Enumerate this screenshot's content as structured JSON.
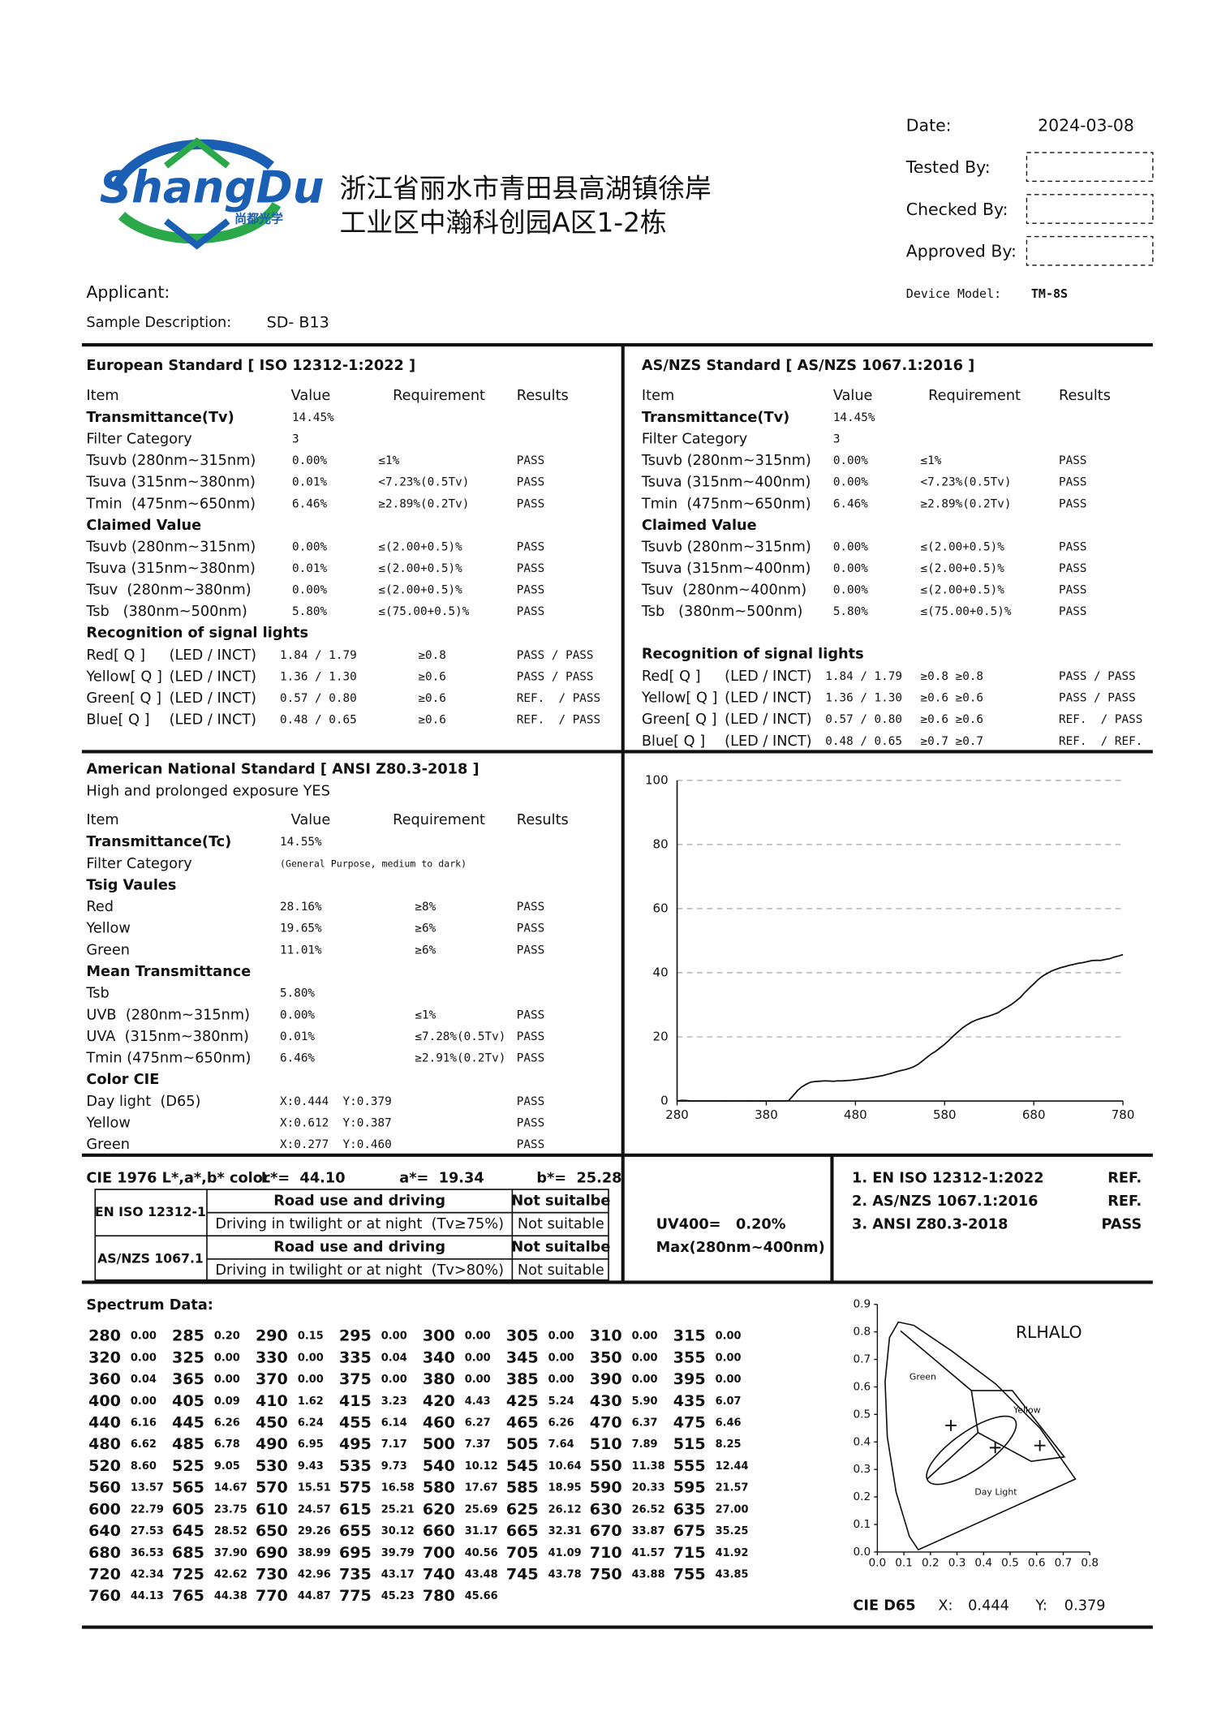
{
  "header": {
    "logo": "ShangDu",
    "logo_sub": "尚都光学",
    "address": [
      "浙江省丽水市青田县高湖镇徐岸",
      "工业区中瀚科创园A区1-2栋"
    ],
    "date_label": "Date:",
    "date": "2024-03-08",
    "tested_by": "Tested By:",
    "checked_by": "Checked By:",
    "approved_by": "Approved By:",
    "device_model_label": "Device Model:",
    "device_model": "TM-8S",
    "applicant": "Applicant:",
    "sample_label": "Sample Description:",
    "sample": "SD- B13"
  },
  "european": {
    "title": "European Standard [ ISO 12312-1:2022 ]",
    "headers": [
      "Item",
      "Value",
      "Requirement",
      "Results"
    ],
    "rows": [
      {
        "heading": "Transmittance(Tv)",
        "cells": [
          "14.45%"
        ]
      },
      [
        "Filter Category",
        "3"
      ],
      [
        "Tsuvb (280nm~315nm)",
        "0.00%",
        "≤1%",
        "PASS"
      ],
      [
        "Tsuva (315nm~380nm)",
        "0.01%",
        "<7.23%(0.5Tv)",
        "PASS"
      ],
      [
        "Tmin  (475nm~650nm)",
        "6.46%",
        "≥2.89%(0.2Tv)",
        "PASS"
      ],
      {
        "heading": "Claimed Value"
      },
      [
        "Tsuvb (280nm~315nm)",
        "0.00%",
        "≤(2.00+0.5)%",
        "PASS"
      ],
      [
        "Tsuva (315nm~380nm)",
        "0.01%",
        "≤(2.00+0.5)%",
        "PASS"
      ],
      [
        "Tsuv  (280nm~380nm)",
        "0.00%",
        "≤(2.00+0.5)%",
        "PASS"
      ],
      [
        "Tsb   (380nm~500nm)",
        "5.80%",
        "≤(75.00+0.5)%",
        "PASS"
      ]
    ],
    "signal": {
      "heading": "Recognition of signal lights",
      "rows": [
        [
          "Red[ Q ]",
          "(LED / INCT)",
          "1.84 / 1.79",
          "≥0.8",
          "PASS / PASS"
        ],
        [
          "Yellow[ Q ]",
          "(LED / INCT)",
          "1.36 / 1.30",
          "≥0.6",
          "PASS / PASS"
        ],
        [
          "Green[ Q ]",
          "(LED / INCT)",
          "0.57 / 0.80",
          "≥0.6",
          "REF.  / PASS"
        ],
        [
          "Blue[ Q ]",
          "(LED / INCT)",
          "0.48 / 0.65",
          "≥0.6",
          "REF.  / PASS"
        ]
      ]
    }
  },
  "asnzs": {
    "title": "AS/NZS Standard [ AS/NZS 1067.1:2016 ]",
    "headers": [
      "Item",
      "Value",
      "Requirement",
      "Results"
    ],
    "rows": [
      {
        "heading": "Transmittance(Tv)",
        "cells": [
          "14.45%"
        ]
      },
      [
        "Filter Category",
        "3"
      ],
      [
        "Tsuvb (280nm~315nm)",
        "0.00%",
        "≤1%",
        "PASS"
      ],
      [
        "Tsuva (315nm~400nm)",
        "0.00%",
        "<7.23%(0.5Tv)",
        "PASS"
      ],
      [
        "Tmin  (475nm~650nm)",
        "6.46%",
        "≥2.89%(0.2Tv)",
        "PASS"
      ],
      {
        "heading": "Claimed Value"
      },
      [
        "Tsuvb (280nm~315nm)",
        "0.00%",
        "≤(2.00+0.5)%",
        "PASS"
      ],
      [
        "Tsuva (315nm~400nm)",
        "0.00%",
        "≤(2.00+0.5)%",
        "PASS"
      ],
      [
        "Tsuv  (280nm~400nm)",
        "0.00%",
        "≤(2.00+0.5)%",
        "PASS"
      ],
      [
        "Tsb   (380nm~500nm)",
        "5.80%",
        "≤(75.00+0.5)%",
        "PASS"
      ]
    ],
    "signal": {
      "heading": "Recognition of signal lights",
      "rows": [
        [
          "Red[ Q ]",
          "(LED / INCT)",
          "1.84 / 1.79",
          "≥0.8 ≥0.8",
          "PASS / PASS"
        ],
        [
          "Yellow[ Q ]",
          "(LED / INCT)",
          "1.36 / 1.30",
          "≥0.6 ≥0.6",
          "PASS / PASS"
        ],
        [
          "Green[ Q ]",
          "(LED / INCT)",
          "0.57 / 0.80",
          "≥0.6 ≥0.6",
          "REF.  / PASS"
        ],
        [
          "Blue[ Q ]",
          "(LED / INCT)",
          "0.48 / 0.65",
          "≥0.7 ≥0.7",
          "REF.  / REF."
        ]
      ]
    }
  },
  "ansi": {
    "title": "American National Standard [ ANSI Z80.3-2018 ]",
    "subtitle": "High and prolonged exposure YES",
    "headers": [
      "Item",
      "Value",
      "Requirement",
      "Results"
    ],
    "rows": [
      {
        "heading": "Transmittance(Tc)",
        "cells": [
          "14.55%"
        ]
      },
      [
        "Filter Category",
        "(General Purpose, medium to dark)"
      ],
      {
        "heading": "Tsig Vaules"
      },
      [
        "Red",
        "28.16%",
        "≥8%",
        "PASS"
      ],
      [
        "Yellow",
        "19.65%",
        "≥6%",
        "PASS"
      ],
      [
        "Green",
        "11.01%",
        "≥6%",
        "PASS"
      ],
      {
        "heading": "Mean Transmittance"
      },
      [
        "Tsb",
        "5.80%"
      ],
      [
        "UVB  (280nm~315nm)",
        "0.00%",
        "≤1%",
        "PASS"
      ],
      [
        "UVA  (315nm~380nm)",
        "0.01%",
        "≤7.28%(0.5Tv)",
        "PASS"
      ],
      [
        "Tmin (475nm~650nm)",
        "6.46%",
        "≥2.91%(0.2Tv)",
        "PASS"
      ],
      {
        "heading": "Color CIE"
      },
      [
        "Day light  (D65)",
        "X:0.444  Y:0.379",
        "PASS"
      ],
      [
        "Yellow",
        "X:0.612  Y:0.387",
        "PASS"
      ],
      [
        "Green",
        "X:0.277  Y:0.460",
        "PASS"
      ]
    ]
  },
  "chart_data": [
    {
      "type": "line",
      "color": "#111111",
      "grid": true,
      "x": [
        280,
        285,
        290,
        295,
        300,
        305,
        310,
        315,
        320,
        325,
        330,
        335,
        340,
        345,
        350,
        355,
        360,
        365,
        370,
        375,
        380,
        385,
        390,
        395,
        400,
        405,
        410,
        415,
        420,
        425,
        430,
        435,
        440,
        445,
        450,
        455,
        460,
        465,
        470,
        475,
        480,
        485,
        490,
        495,
        500,
        505,
        510,
        515,
        520,
        525,
        530,
        535,
        540,
        545,
        550,
        555,
        560,
        565,
        570,
        575,
        580,
        585,
        590,
        595,
        600,
        605,
        610,
        615,
        620,
        625,
        630,
        635,
        640,
        645,
        650,
        655,
        660,
        665,
        670,
        675,
        680,
        685,
        690,
        695,
        700,
        705,
        710,
        715,
        720,
        725,
        730,
        735,
        740,
        745,
        750,
        755,
        760,
        765,
        770,
        775,
        780
      ],
      "values": [
        0,
        0.2,
        0.15,
        0,
        0,
        0,
        0,
        0,
        0,
        0,
        0,
        0.04,
        0,
        0,
        0,
        0,
        0.04,
        0,
        0,
        0,
        0,
        0,
        0,
        0,
        0,
        0.09,
        1.62,
        3.23,
        4.43,
        5.24,
        5.9,
        6.07,
        6.16,
        6.26,
        6.24,
        6.14,
        6.27,
        6.26,
        6.37,
        6.46,
        6.62,
        6.78,
        6.95,
        7.17,
        7.37,
        7.64,
        7.89,
        8.25,
        8.6,
        9.05,
        9.43,
        9.73,
        10.12,
        10.64,
        11.38,
        12.44,
        13.57,
        14.67,
        15.51,
        16.58,
        17.67,
        18.95,
        20.33,
        21.57,
        22.79,
        23.75,
        24.57,
        25.21,
        25.69,
        26.12,
        26.52,
        27,
        27.53,
        28.52,
        29.26,
        30.12,
        31.17,
        32.31,
        33.87,
        35.25,
        36.53,
        37.9,
        38.99,
        39.79,
        40.56,
        41.09,
        41.57,
        41.92,
        42.34,
        42.62,
        42.96,
        43.17,
        43.48,
        43.78,
        43.88,
        43.85,
        44.13,
        44.38,
        44.87,
        45.23,
        45.66
      ],
      "value_labels": [
        "0.00",
        "0.20",
        "0.15",
        "0.00",
        "0.00",
        "0.00",
        "0.00",
        "0.00",
        "0.00",
        "0.00",
        "0.00",
        "0.04",
        "0.00",
        "0.00",
        "0.00",
        "0.00",
        "0.04",
        "0.00",
        "0.00",
        "0.00",
        "0.00",
        "0.00",
        "0.00",
        "0.00",
        "0.00",
        "0.09",
        "1.62",
        "3.23",
        "4.43",
        "5.24",
        "5.90",
        "6.07",
        "6.16",
        "6.26",
        "6.24",
        "6.14",
        "6.27",
        "6.26",
        "6.37",
        "6.46",
        "6.62",
        "6.78",
        "6.95",
        "7.17",
        "7.37",
        "7.64",
        "7.89",
        "8.25",
        "8.60",
        "9.05",
        "9.43",
        "9.73",
        "10.12",
        "10.64",
        "11.38",
        "12.44",
        "13.57",
        "14.67",
        "15.51",
        "16.58",
        "17.67",
        "18.95",
        "20.33",
        "21.57",
        "22.79",
        "23.75",
        "24.57",
        "25.21",
        "25.69",
        "26.12",
        "26.52",
        "27.00",
        "27.53",
        "28.52",
        "29.26",
        "30.12",
        "31.17",
        "32.31",
        "33.87",
        "35.25",
        "36.53",
        "37.90",
        "38.99",
        "39.79",
        "40.56",
        "41.09",
        "41.57",
        "41.92",
        "42.34",
        "42.62",
        "42.96",
        "43.17",
        "43.48",
        "43.78",
        "43.88",
        "43.85",
        "44.13",
        "44.38",
        "44.87",
        "45.23",
        "45.66"
      ],
      "xlim": [
        280,
        780
      ],
      "xticks": [
        280,
        380,
        480,
        580,
        680,
        780
      ],
      "ylim": [
        0,
        100
      ],
      "yticks": [
        0,
        20,
        40,
        60,
        80,
        100
      ]
    },
    {
      "type": "scatter",
      "title": "RLHALO",
      "color": "#111111",
      "annotations": [
        "Green",
        "Yellow",
        "Day Light"
      ],
      "x": [
        0.277,
        0.444,
        0.612
      ],
      "values": [
        0.46,
        0.379,
        0.387
      ],
      "xlim": [
        0,
        0.8
      ],
      "ylim": [
        0,
        0.9
      ],
      "xticks": [
        {
          "value": 0,
          "label": "0.0"
        },
        {
          "value": 0.1,
          "label": "0.1"
        },
        {
          "value": 0.2,
          "label": "0.2"
        },
        {
          "value": 0.3,
          "label": "0.3"
        },
        {
          "value": 0.4,
          "label": "0.4"
        },
        {
          "value": 0.5,
          "label": "0.5"
        },
        {
          "value": 0.6,
          "label": "0.6"
        },
        {
          "value": 0.7,
          "label": "0.7"
        },
        {
          "value": 0.8,
          "label": "0.8"
        }
      ],
      "yticks": [
        {
          "value": 0,
          "label": "0.0"
        },
        {
          "value": 0.1,
          "label": "0.1"
        },
        {
          "value": 0.2,
          "label": "0.2"
        },
        {
          "value": 0.3,
          "label": "0.3"
        },
        {
          "value": 0.4,
          "label": "0.4"
        },
        {
          "value": 0.5,
          "label": "0.5"
        },
        {
          "value": 0.6,
          "label": "0.6"
        },
        {
          "value": 0.7,
          "label": "0.7"
        },
        {
          "value": 0.8,
          "label": "0.8"
        },
        {
          "value": 0.9,
          "label": "0.9"
        }
      ]
    }
  ],
  "cie_lab": {
    "label": "CIE 1976 L*,a*,b* color",
    "L": "L*=  44.10",
    "a": "a*=  19.34",
    "b": "b*=  25.28"
  },
  "suitability": [
    {
      "standard": "EN ISO 12312-1",
      "rows": [
        [
          "Road use and driving",
          "Not suitalbe"
        ],
        [
          "Driving in twilight or at night  (Tv≥75%)",
          "Not suitable"
        ]
      ]
    },
    {
      "standard": "AS/NZS 1067.1",
      "rows": [
        [
          "Road use and driving",
          "Not suitalbe"
        ],
        [
          "Driving in twilight or at night  (Tv>80%)",
          "Not suitable"
        ]
      ]
    }
  ],
  "uv400": {
    "value": "UV400=   0.20%",
    "range": "Max(280nm~400nm)"
  },
  "conclusions": [
    [
      "1. EN ISO 12312-1:2022",
      "REF."
    ],
    [
      "2. AS/NZS 1067.1:2016",
      "REF."
    ],
    [
      "3. ANSI Z80.3-2018",
      "PASS"
    ]
  ],
  "spectrum": {
    "title": "Spectrum Data:"
  },
  "cie_footer": {
    "label": "CIE D65",
    "x_label": "X:",
    "x": "0.444",
    "y_label": "Y:",
    "y": "0.379"
  }
}
